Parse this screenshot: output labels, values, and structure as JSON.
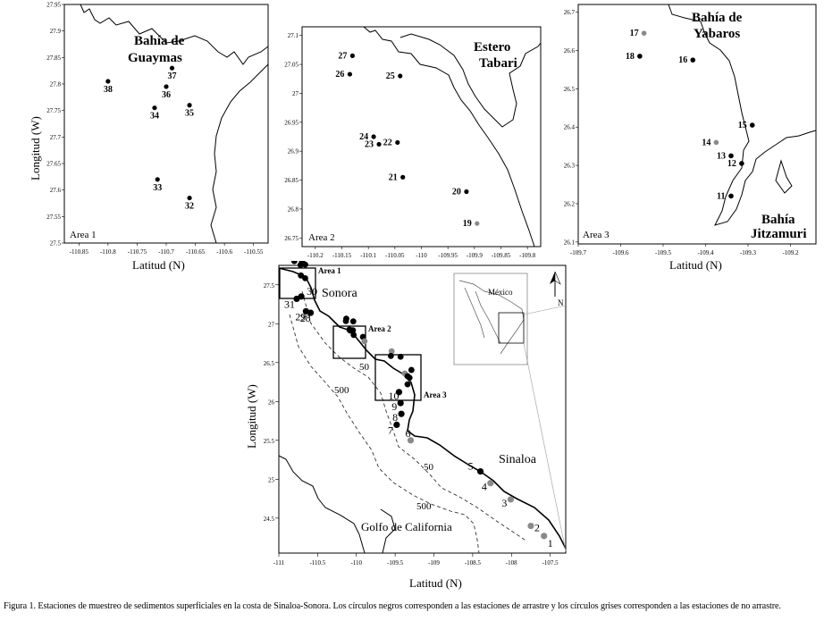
{
  "caption": "Figura 1. Estaciones de muestreo de sedimentos superficiales en la costa de Sinaloa-Sonora. Los círculos negros corresponden a las estaciones de arrastre y los círculos grises corresponden a las estaciones de no arrastre.",
  "colors": {
    "trawl": "#000000",
    "non_trawl": "#8a8a8a",
    "coast": "#000000",
    "isobath": "#333333"
  },
  "area1": {
    "label": "Area 1",
    "place": [
      "Bahía de",
      "Guaymas"
    ],
    "xlabel": "Latitud (N)",
    "ylabel": "Longitud (W)",
    "xticks": [
      "-110.85",
      "-110.8",
      "-110.75",
      "-110.7",
      "-110.65",
      "-110.6",
      "-110.55"
    ],
    "yticks": [
      "27.95",
      "27.9",
      "27.85",
      "27.8",
      "27.75",
      "27.7",
      "27.65",
      "27.6",
      "27.55",
      "27.5"
    ],
    "stations": [
      {
        "id": "38",
        "lon": -110.8,
        "lat": 27.805,
        "type": "trawl"
      },
      {
        "id": "37",
        "lon": -110.69,
        "lat": 27.83,
        "type": "trawl"
      },
      {
        "id": "36",
        "lon": -110.7,
        "lat": 27.795,
        "type": "trawl"
      },
      {
        "id": "34",
        "lon": -110.72,
        "lat": 27.755,
        "type": "trawl"
      },
      {
        "id": "35",
        "lon": -110.66,
        "lat": 27.76,
        "type": "trawl"
      },
      {
        "id": "33",
        "lon": -110.715,
        "lat": 27.62,
        "type": "trawl"
      },
      {
        "id": "32",
        "lon": -110.66,
        "lat": 27.585,
        "type": "trawl"
      }
    ]
  },
  "area2": {
    "label": "Area 2",
    "place": [
      "Estero",
      "Tabari"
    ],
    "xticks": [
      "-110.2",
      "-110.15",
      "-110.1",
      "-110.05",
      "-110",
      "-109.95",
      "-109.9",
      "-109.85",
      "-109.8"
    ],
    "yticks": [
      "27.1",
      "27.05",
      "27",
      "26.95",
      "26.9",
      "26.85",
      "26.8",
      "26.75"
    ],
    "stations": [
      {
        "id": "27",
        "lon": -110.13,
        "lat": 27.065,
        "type": "trawl"
      },
      {
        "id": "26",
        "lon": -110.135,
        "lat": 27.033,
        "type": "trawl"
      },
      {
        "id": "25",
        "lon": -110.04,
        "lat": 27.03,
        "type": "trawl"
      },
      {
        "id": "24",
        "lon": -110.09,
        "lat": 26.925,
        "type": "trawl"
      },
      {
        "id": "23",
        "lon": -110.08,
        "lat": 26.912,
        "type": "trawl"
      },
      {
        "id": "22",
        "lon": -110.045,
        "lat": 26.915,
        "type": "trawl"
      },
      {
        "id": "21",
        "lon": -110.035,
        "lat": 26.855,
        "type": "trawl"
      },
      {
        "id": "20",
        "lon": -109.915,
        "lat": 26.83,
        "type": "trawl"
      },
      {
        "id": "19",
        "lon": -109.895,
        "lat": 26.775,
        "type": "non_trawl"
      }
    ]
  },
  "area3": {
    "label": "Area 3",
    "place_top": [
      "Bahía de",
      "Yabaros"
    ],
    "place_bottom": [
      "Bahía",
      "Jitzamuri"
    ],
    "xticks": [
      "-109.7",
      "-109.6",
      "-109.5",
      "-109.4",
      "-109.3",
      "-109.2"
    ],
    "yticks": [
      "26.7",
      "26.6",
      "26.5",
      "26.4",
      "26.3",
      "26.2",
      "26.1"
    ],
    "stations": [
      {
        "id": "17",
        "lon": -109.545,
        "lat": 26.645,
        "type": "non_trawl"
      },
      {
        "id": "18",
        "lon": -109.555,
        "lat": 26.585,
        "type": "trawl"
      },
      {
        "id": "16",
        "lon": -109.43,
        "lat": 26.575,
        "type": "trawl"
      },
      {
        "id": "15",
        "lon": -109.29,
        "lat": 26.405,
        "type": "trawl"
      },
      {
        "id": "14",
        "lon": -109.375,
        "lat": 26.36,
        "type": "non_trawl"
      },
      {
        "id": "13",
        "lon": -109.34,
        "lat": 26.325,
        "type": "trawl"
      },
      {
        "id": "12",
        "lon": -109.315,
        "lat": 26.305,
        "type": "trawl"
      },
      {
        "id": "11",
        "lon": -109.34,
        "lat": 26.22,
        "type": "trawl"
      }
    ]
  },
  "main": {
    "xlabel": "Latitud (N)",
    "ylabel": "Longitud (W)",
    "xticks": [
      "-111",
      "-110.5",
      "-110",
      "-109.5",
      "-109",
      "-108.5",
      "-108",
      "-107.5"
    ],
    "yticks": [
      "27.5",
      "27",
      "26.5",
      "26",
      "25.5",
      "25",
      "24.5"
    ],
    "box_labels": [
      "Area 1",
      "Area 2",
      "Area 3"
    ],
    "regions": {
      "sonora": "Sonora",
      "sinaloa": "Sinaloa",
      "gulf": "Golfo de California",
      "mexico": "México"
    },
    "isobaths": [
      "50",
      "500",
      "50",
      "500"
    ],
    "north": "N",
    "station_labels": [
      "31",
      "30",
      "29",
      "28",
      "10",
      "9",
      "8",
      "7",
      "6",
      "5",
      "4",
      "3",
      "2",
      "1"
    ],
    "trawl_stations": [
      {
        "id": "31",
        "lon": -110.77,
        "lat": 27.32
      },
      {
        "id": "30",
        "lon": -110.71,
        "lat": 27.35
      },
      {
        "id": "29",
        "lon": -110.65,
        "lat": 27.16
      },
      {
        "id": "28",
        "lon": -110.59,
        "lat": 27.14
      },
      {
        "id": "10",
        "lon": -109.45,
        "lat": 26.12
      },
      {
        "id": "9",
        "lon": -109.43,
        "lat": 25.98
      },
      {
        "id": "8",
        "lon": -109.42,
        "lat": 25.84
      },
      {
        "id": "7",
        "lon": -109.48,
        "lat": 25.7
      },
      {
        "id": "5",
        "lon": -108.4,
        "lat": 25.1
      }
    ],
    "non_trawl_stations": [
      {
        "id": "6",
        "lon": -109.3,
        "lat": 25.5
      },
      {
        "id": "4",
        "lon": -108.27,
        "lat": 24.95
      },
      {
        "id": "3",
        "lon": -108.01,
        "lat": 24.74
      },
      {
        "id": "2",
        "lon": -107.75,
        "lat": 24.4
      },
      {
        "id": "1",
        "lon": -107.58,
        "lat": 24.27
      }
    ]
  }
}
